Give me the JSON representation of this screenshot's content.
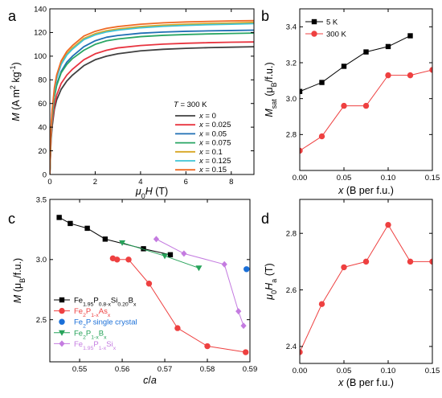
{
  "panel_labels": [
    "a",
    "b",
    "c",
    "d"
  ],
  "chart_data": [
    {
      "id": "a",
      "type": "line",
      "xlabel": "μ0H (T)",
      "ylabel": "M (A m² kg⁻¹)",
      "xlim": [
        0,
        9
      ],
      "ylim": [
        0,
        140
      ],
      "xticks": [
        0,
        2,
        4,
        6,
        8
      ],
      "yticks": [
        0,
        20,
        40,
        60,
        80,
        100,
        120,
        140
      ],
      "legend_title": "T = 300 K",
      "legend_position": "right",
      "series": [
        {
          "name": "x = 0",
          "color": "#404040",
          "values_at_9T": 108,
          "x": [
            0,
            0.05,
            0.1,
            0.2,
            0.3,
            0.5,
            0.75,
            1,
            1.5,
            2,
            2.5,
            3,
            4,
            5,
            6,
            7,
            8,
            9
          ],
          "y": [
            0,
            28,
            40,
            55,
            63,
            72,
            79,
            84,
            92,
            97,
            100,
            102,
            104.5,
            105.8,
            106.6,
            107.2,
            107.6,
            108
          ]
        },
        {
          "name": "x = 0.025",
          "color": "#e8343f",
          "x": [
            0,
            0.05,
            0.1,
            0.2,
            0.3,
            0.5,
            0.75,
            1,
            1.5,
            2,
            2.5,
            3,
            4,
            5,
            6,
            7,
            8,
            9
          ],
          "y": [
            0,
            30,
            43,
            58,
            67,
            77,
            84,
            89,
            97,
            102,
            105,
            107,
            109,
            110.2,
            110.9,
            111.4,
            111.8,
            112
          ]
        },
        {
          "name": "x = 0.05",
          "color": "#1f6fb4",
          "x": [
            0,
            0.05,
            0.1,
            0.2,
            0.3,
            0.5,
            0.75,
            1,
            1.5,
            2,
            2.5,
            3,
            4,
            5,
            6,
            7,
            8,
            9
          ],
          "y": [
            0,
            34,
            48,
            66,
            76,
            87,
            95,
            100,
            108,
            113,
            116,
            117.5,
            119.4,
            120.4,
            121,
            121.4,
            121.7,
            122
          ]
        },
        {
          "name": "x = 0.075",
          "color": "#2aa664",
          "x": [
            0,
            0.05,
            0.1,
            0.2,
            0.3,
            0.5,
            0.75,
            1,
            1.5,
            2,
            2.5,
            3,
            4,
            5,
            6,
            7,
            8,
            9
          ],
          "y": [
            0,
            33,
            47,
            65,
            75,
            86,
            93,
            98,
            105,
            110,
            113,
            114.5,
            116.5,
            117.6,
            118.3,
            118.8,
            119.2,
            119.5
          ]
        },
        {
          "name": "x = 0.1",
          "color": "#d8a623",
          "x": [
            0,
            0.05,
            0.1,
            0.2,
            0.3,
            0.5,
            0.75,
            1,
            1.5,
            2,
            2.5,
            3,
            4,
            5,
            6,
            7,
            8,
            9
          ],
          "y": [
            0,
            37,
            52,
            71,
            82,
            94,
            102,
            107,
            115,
            119,
            121.5,
            123,
            125,
            126.2,
            127,
            127.6,
            128,
            128.5
          ]
        },
        {
          "name": "x = 0.125",
          "color": "#3fc4d4",
          "x": [
            0,
            0.05,
            0.1,
            0.2,
            0.3,
            0.5,
            0.75,
            1,
            1.5,
            2,
            2.5,
            3,
            4,
            5,
            6,
            7,
            8,
            9
          ],
          "y": [
            0,
            36,
            51,
            70,
            81,
            93,
            101,
            106,
            114,
            118,
            120.5,
            122,
            124,
            125.2,
            126,
            126.6,
            127,
            127.5
          ]
        },
        {
          "name": "x = 0.15",
          "color": "#ef6a24",
          "x": [
            0,
            0.05,
            0.1,
            0.2,
            0.3,
            0.5,
            0.75,
            1,
            1.5,
            2,
            2.5,
            3,
            4,
            5,
            6,
            7,
            8,
            9
          ],
          "y": [
            0,
            38,
            54,
            73,
            84,
            96,
            104,
            109,
            117,
            121,
            123.5,
            125,
            127,
            128.2,
            128.9,
            129.4,
            129.8,
            130
          ]
        }
      ]
    },
    {
      "id": "b",
      "type": "line",
      "xlabel": "x (B per f.u.)",
      "ylabel": "Msat (μB/f.u.)",
      "xlim": [
        0,
        0.15
      ],
      "ylim": [
        2.6,
        3.5
      ],
      "xticks": [
        0.0,
        0.05,
        0.1,
        0.15
      ],
      "yticks": [
        2.8,
        3.0,
        3.2,
        3.4
      ],
      "legend_position": "top-left",
      "series": [
        {
          "name": "5 K",
          "color": "#000000",
          "marker": "square",
          "x": [
            0,
            0.025,
            0.05,
            0.075,
            0.1,
            0.125
          ],
          "y": [
            3.04,
            3.09,
            3.18,
            3.26,
            3.29,
            3.35
          ]
        },
        {
          "name": "300 K",
          "color": "#ee4040",
          "marker": "circle",
          "x": [
            0,
            0.025,
            0.05,
            0.075,
            0.1,
            0.125,
            0.15
          ],
          "y": [
            2.71,
            2.79,
            2.96,
            2.96,
            3.13,
            3.13,
            3.16
          ]
        }
      ]
    },
    {
      "id": "c",
      "type": "line",
      "xlabel": "c/a",
      "ylabel": "M (μB/f.u.)",
      "xlim": [
        0.543,
        0.59
      ],
      "ylim": [
        2.15,
        3.5
      ],
      "xticks": [
        0.55,
        0.56,
        0.57,
        0.58,
        0.59
      ],
      "yticks": [
        2.5,
        3.0,
        3.5
      ],
      "legend_position": "bottom-left",
      "series": [
        {
          "name": "Fe1.95P0.8-xSi0.20Bx",
          "color": "#000000",
          "marker": "square",
          "x": [
            0.5452,
            0.5478,
            0.5518,
            0.556,
            0.565,
            0.5713
          ],
          "y": [
            3.35,
            3.3,
            3.26,
            3.17,
            3.09,
            3.04
          ]
        },
        {
          "name": "Fe2P1-xAsx",
          "color": "#ee4040",
          "marker": "circle",
          "x": [
            0.5578,
            0.5588,
            0.5615,
            0.5663,
            0.573,
            0.58,
            0.589
          ],
          "y": [
            3.01,
            3.0,
            3.0,
            2.8,
            2.43,
            2.28,
            2.23
          ]
        },
        {
          "name": "Fe2P single crystal",
          "color": "#1a6fd8",
          "marker": "circle",
          "x": [
            0.5892
          ],
          "y": [
            2.92
          ]
        },
        {
          "name": "Fe2P1-xBx",
          "color": "#27a35a",
          "marker": "triangle-down",
          "x": [
            0.56,
            0.57,
            0.578
          ],
          "y": [
            3.14,
            3.03,
            2.93
          ]
        },
        {
          "name": "Fe1.95P1-xSix",
          "color": "#c47be0",
          "marker": "diamond",
          "x": [
            0.568,
            0.5745,
            0.584,
            0.5873,
            0.5885
          ],
          "y": [
            3.17,
            3.05,
            2.96,
            2.57,
            2.45
          ]
        }
      ]
    },
    {
      "id": "d",
      "type": "line",
      "xlabel": "x (B per f.u.)",
      "ylabel": "μ0Ha (T)",
      "xlim": [
        0,
        0.15
      ],
      "ylim": [
        2.34,
        2.92
      ],
      "xticks": [
        0.0,
        0.05,
        0.1,
        0.15
      ],
      "yticks": [
        2.4,
        2.6,
        2.8
      ],
      "series": [
        {
          "name": "",
          "color": "#ee4040",
          "marker": "circle",
          "x": [
            0,
            0.025,
            0.05,
            0.075,
            0.1,
            0.125,
            0.15
          ],
          "y": [
            2.38,
            2.55,
            2.68,
            2.7,
            2.83,
            2.7,
            2.7
          ]
        }
      ]
    }
  ]
}
